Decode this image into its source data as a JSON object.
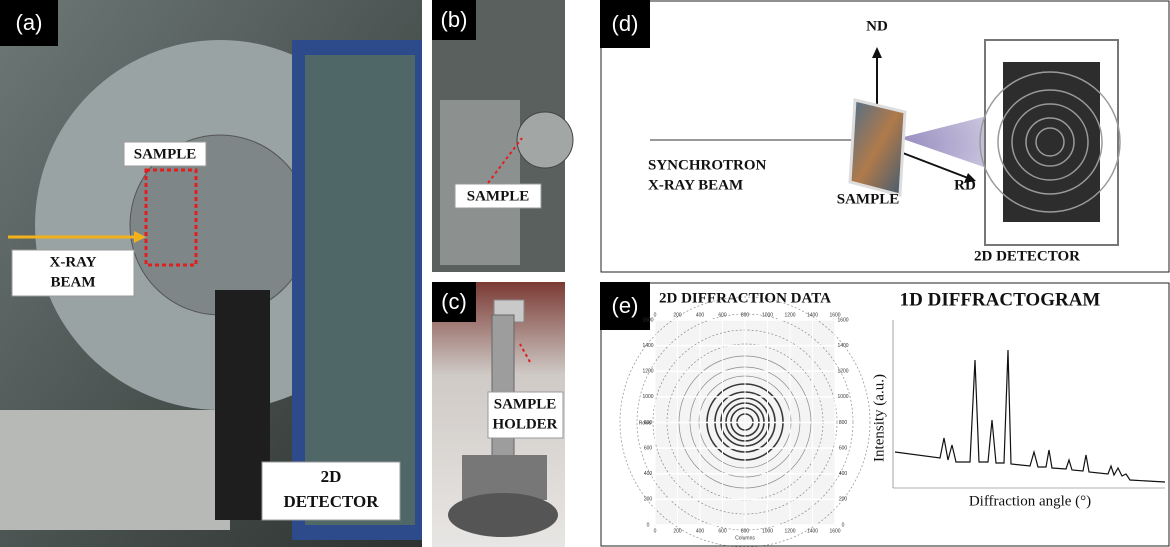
{
  "panel_a": {
    "label": "(a)",
    "sample": "SAMPLE",
    "beam": [
      "X-RAY",
      "BEAM"
    ],
    "detector": [
      "2D",
      "DETECTOR"
    ]
  },
  "panel_b": {
    "label": "(b)",
    "sample": "SAMPLE"
  },
  "panel_c": {
    "label": "(c)",
    "holder": [
      "SAMPLE",
      "HOLDER"
    ]
  },
  "panel_d": {
    "label": "(d)",
    "nd": "ND",
    "rd": "RD",
    "beam": [
      "SYNCHROTRON",
      "X-RAY BEAM"
    ],
    "sample": "SAMPLE",
    "detector": "2D DETECTOR"
  },
  "panel_e": {
    "label": "(e)",
    "left_title": "2D DIFFRACTION DATA",
    "right_title": "1D DIFFRACTOGRAM",
    "image_x_name": "Columns",
    "image_y_name": "Rows",
    "image_x_ticks": [
      0,
      200,
      400,
      600,
      800,
      1000,
      1200,
      1400,
      1600
    ],
    "image_y_ticks": [
      0,
      200,
      400,
      600,
      800,
      1000,
      1200,
      1400,
      1600
    ],
    "y_label": "Intensity (a.u.)",
    "x_label": "Diffraction angle (°)"
  }
}
